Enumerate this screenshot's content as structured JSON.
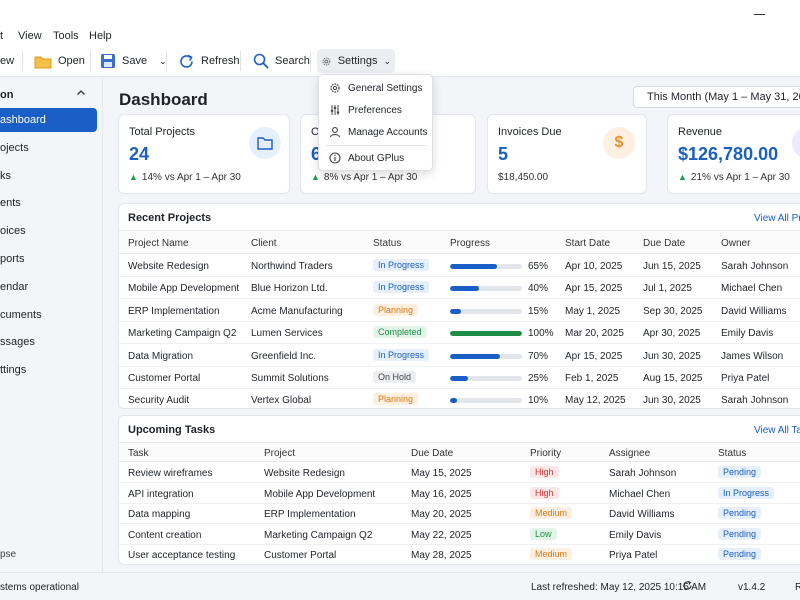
{
  "menubar": {
    "items": [
      "t",
      "View",
      "Tools",
      "Help"
    ]
  },
  "toolbar": {
    "new_label": "ew",
    "open_label": "Open",
    "save_label": "Save",
    "refresh_label": "Refresh",
    "search_label": "Search",
    "settings_label": "Settings"
  },
  "settings_menu": {
    "items": [
      {
        "label": "General Settings",
        "icon": "gear-icon"
      },
      {
        "label": "Preferences",
        "icon": "sliders-icon"
      },
      {
        "label": "Manage Accounts",
        "icon": "user-icon"
      },
      {
        "label": "About GPlus",
        "icon": "info-icon"
      }
    ]
  },
  "sidebar": {
    "header": "on",
    "items": [
      {
        "label": "ashboard",
        "active": true
      },
      {
        "label": "ojects"
      },
      {
        "label": "ks"
      },
      {
        "label": "ents"
      },
      {
        "label": "oices"
      },
      {
        "label": "ports"
      },
      {
        "label": "endar"
      },
      {
        "label": "cuments"
      },
      {
        "label": "ssages"
      },
      {
        "label": "ttings"
      }
    ],
    "collapse_label": "pse"
  },
  "main": {
    "title": "Dashboard",
    "date_range": "This Month (May 1 – May 31, 2025)"
  },
  "cards": [
    {
      "title": "Total Projects",
      "value": "24",
      "sub": "14% vs Apr 1 – Apr 30",
      "icon": "folder-icon",
      "accent": "#1a5fc6"
    },
    {
      "title": "O",
      "value": "6",
      "sub": "8% vs Apr 1 – Apr 30",
      "icon": "",
      "accent": "#1a5fc6"
    },
    {
      "title": "Invoices Due",
      "value": "5",
      "sub": "$18,450.00",
      "icon": "dollar-icon",
      "accent": "#e8912d"
    },
    {
      "title": "Revenue",
      "value": "$126,780.00",
      "sub": "21% vs Apr 1 – Apr 30",
      "icon": "chart-icon",
      "accent": "#6b5bd6"
    }
  ],
  "recent_projects": {
    "title": "Recent Projects",
    "link": "View All Pro",
    "columns": [
      "Project Name",
      "Client",
      "Status",
      "Progress",
      "Start Date",
      "Due Date",
      "Owner"
    ],
    "rows": [
      {
        "name": "Website Redesign",
        "client": "Northwind Traders",
        "status": "In Progress",
        "progress": 65,
        "progress_label": "65%",
        "start": "Apr 10, 2025",
        "due": "Jun 15, 2025",
        "owner": "Sarah Johnson"
      },
      {
        "name": "Mobile App Development",
        "client": "Blue Horizon Ltd.",
        "status": "In Progress",
        "progress": 40,
        "progress_label": "40%",
        "start": "Apr 15, 2025",
        "due": "Jul 1, 2025",
        "owner": "Michael Chen"
      },
      {
        "name": "ERP Implementation",
        "client": "Acme Manufacturing",
        "status": "Planning",
        "progress": 15,
        "progress_label": "15%",
        "start": "May 1, 2025",
        "due": "Sep 30, 2025",
        "owner": "David Williams"
      },
      {
        "name": "Marketing Campaign Q2",
        "client": "Lumen Services",
        "status": "Completed",
        "progress": 100,
        "progress_label": "100%",
        "start": "Mar 20, 2025",
        "due": "Apr 30, 2025",
        "owner": "Emily Davis"
      },
      {
        "name": "Data Migration",
        "client": "Greenfield Inc.",
        "status": "In Progress",
        "progress": 70,
        "progress_label": "70%",
        "start": "Apr 15, 2025",
        "due": "Jun 30, 2025",
        "owner": "James Wilson"
      },
      {
        "name": "Customer Portal",
        "client": "Summit Solutions",
        "status": "On Hold",
        "progress": 25,
        "progress_label": "25%",
        "start": "Feb 1, 2025",
        "due": "Aug 15, 2025",
        "owner": "Priya Patel"
      },
      {
        "name": "Security Audit",
        "client": "Vertex Global",
        "status": "Planning",
        "progress": 10,
        "progress_label": "10%",
        "start": "May 12, 2025",
        "due": "Jun 30, 2025",
        "owner": "Sarah Johnson"
      }
    ]
  },
  "upcoming_tasks": {
    "title": "Upcoming Tasks",
    "link": "View All Tas",
    "columns": [
      "Task",
      "Project",
      "Due Date",
      "Priority",
      "Assignee",
      "Status"
    ],
    "rows": [
      {
        "task": "Review wireframes",
        "project": "Website Redesign",
        "due": "May 15, 2025",
        "priority": "High",
        "assignee": "Sarah Johnson",
        "status": "Pending"
      },
      {
        "task": "API integration",
        "project": "Mobile App Development",
        "due": "May 16, 2025",
        "priority": "High",
        "assignee": "Michael Chen",
        "status": "In Progress"
      },
      {
        "task": "Data mapping",
        "project": "ERP Implementation",
        "due": "May 20, 2025",
        "priority": "Medium",
        "assignee": "David Williams",
        "status": "Pending"
      },
      {
        "task": "Content creation",
        "project": "Marketing Campaign Q2",
        "due": "May 22, 2025",
        "priority": "Low",
        "assignee": "Emily Davis",
        "status": "Pending"
      },
      {
        "task": "User acceptance testing",
        "project": "Customer Portal",
        "due": "May 28, 2025",
        "priority": "Medium",
        "assignee": "Priya Patel",
        "status": "Pending"
      }
    ]
  },
  "statusbar": {
    "left": "stems operational",
    "refreshed": "Last refreshed: May 12, 2025 10:15 AM",
    "version": "v1.4.2",
    "right": "R"
  },
  "colors": {
    "accent": "#1a5fc6",
    "in_progress_bg": "#e6effc",
    "in_progress_fg": "#1a5fc6",
    "planning_bg": "#fdf0e1",
    "planning_fg": "#d97a14",
    "completed_bg": "#e3f5e9",
    "completed_fg": "#1e8e46",
    "on_hold_bg": "#eceef1",
    "on_hold_fg": "#444",
    "high_bg": "#fde6e6",
    "high_fg": "#d23a3a",
    "medium_bg": "#fdf0e1",
    "medium_fg": "#d97a14",
    "low_bg": "#e3f5e9",
    "low_fg": "#1e8e46",
    "pending_bg": "#e6effc",
    "pending_fg": "#1a5fc6"
  }
}
